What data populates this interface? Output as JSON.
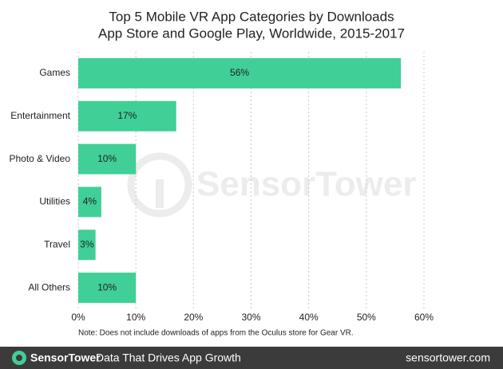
{
  "chart_data": {
    "type": "bar",
    "orientation": "horizontal",
    "title": "Top 5 Mobile VR App Categories by Downloads",
    "subtitle": "App Store and Google Play, Worldwide, 2015-2017",
    "categories": [
      "Games",
      "Entertainment",
      "Photo & Video",
      "Utilities",
      "Travel",
      "All Others"
    ],
    "values": [
      56,
      17,
      10,
      4,
      3,
      10
    ],
    "value_labels": [
      "56%",
      "17%",
      "10%",
      "4%",
      "3%",
      "10%"
    ],
    "color": "#40cf96",
    "xlim": [
      0,
      60
    ],
    "xticks": [
      {
        "value": 0,
        "label": "0%"
      },
      {
        "value": 10,
        "label": "10%"
      },
      {
        "value": 20,
        "label": "20%"
      },
      {
        "value": 30,
        "label": "30%"
      },
      {
        "value": 40,
        "label": "40%"
      },
      {
        "value": 50,
        "label": "50%"
      },
      {
        "value": 60,
        "label": "60%"
      }
    ],
    "grid": true,
    "note": "Note: Does not include downloads of apps from the Oculus store for Gear VR.",
    "watermark": "SensorTower"
  },
  "footer": {
    "brand": "SensorTower",
    "tagline": "Data That Drives App Growth",
    "url": "sensortower.com"
  }
}
